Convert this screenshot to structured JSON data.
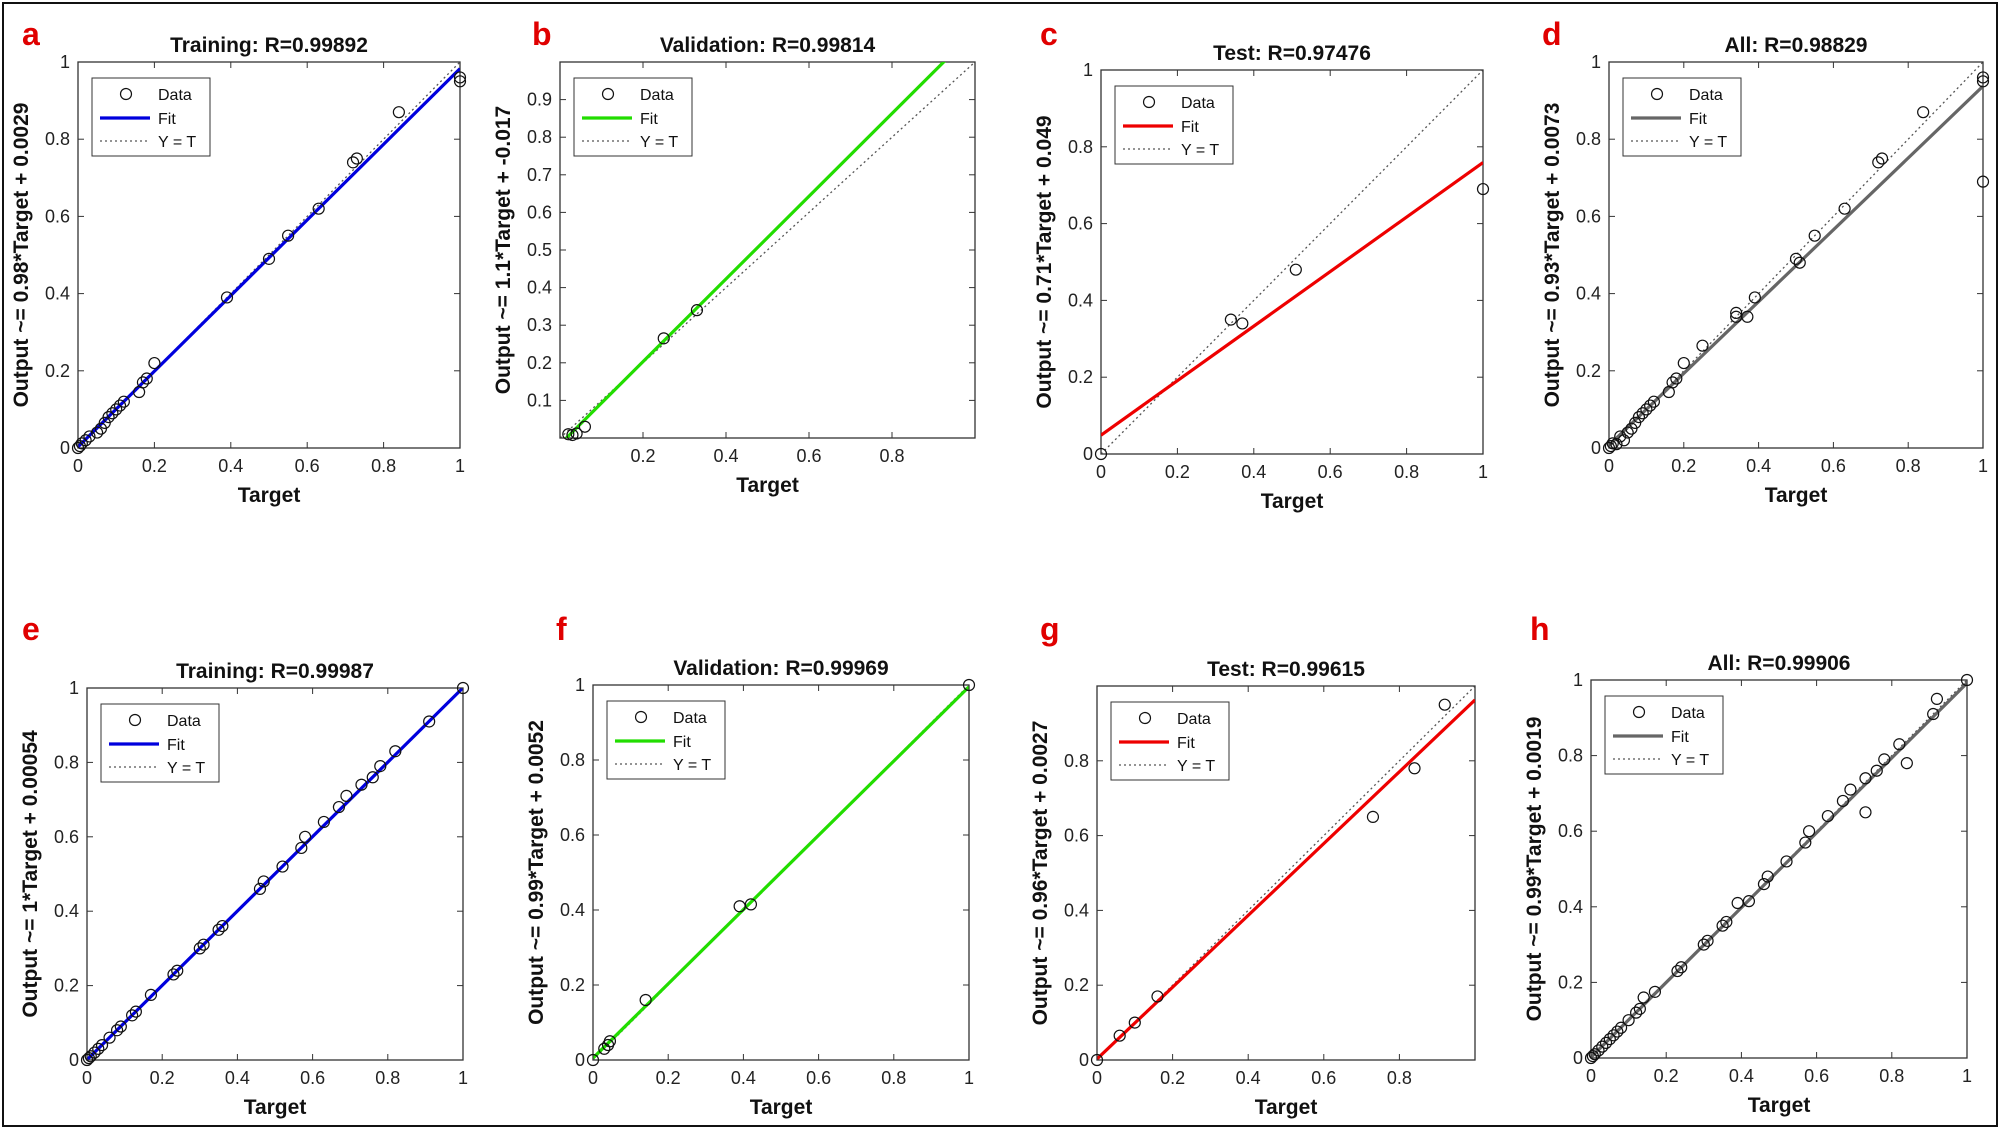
{
  "figure": {
    "letter_color": "#e00000"
  },
  "chart_data": [
    {
      "type": "scatter",
      "panel": "a",
      "title": "Training: R=0.99892",
      "xlabel": "Target",
      "ylabel": "Output ~= 0.98*Target + 0.0029",
      "xlim": [
        0,
        1
      ],
      "ylim": [
        0,
        1
      ],
      "xticks": [
        "0",
        "0.2",
        "0.4",
        "0.6",
        "0.8",
        "1"
      ],
      "yticks": [
        "0",
        "0.2",
        "0.4",
        "0.6",
        "0.8",
        "1"
      ],
      "fit": {
        "slope": 0.98,
        "intercept": 0.0029,
        "color": "#0000dd"
      },
      "legend": [
        "Data",
        "Fit",
        "Y = T"
      ],
      "points": [
        [
          0,
          0
        ],
        [
          0.005,
          0.005
        ],
        [
          0.01,
          0.012
        ],
        [
          0.02,
          0.02
        ],
        [
          0.03,
          0.03
        ],
        [
          0.05,
          0.04
        ],
        [
          0.06,
          0.05
        ],
        [
          0.07,
          0.065
        ],
        [
          0.08,
          0.08
        ],
        [
          0.09,
          0.09
        ],
        [
          0.1,
          0.1
        ],
        [
          0.11,
          0.11
        ],
        [
          0.12,
          0.12
        ],
        [
          0.16,
          0.145
        ],
        [
          0.17,
          0.17
        ],
        [
          0.18,
          0.18
        ],
        [
          0.2,
          0.22
        ],
        [
          0.39,
          0.39
        ],
        [
          0.5,
          0.49
        ],
        [
          0.55,
          0.55
        ],
        [
          0.63,
          0.62
        ],
        [
          0.72,
          0.74
        ],
        [
          0.73,
          0.75
        ],
        [
          0.84,
          0.87
        ],
        [
          1,
          0.95
        ],
        [
          1,
          0.96
        ]
      ]
    },
    {
      "type": "scatter",
      "panel": "b",
      "title": "Validation: R=0.99814",
      "xlabel": "Target",
      "ylabel": "Output ~= 1.1*Target + -0.017",
      "xlim": [
        0,
        1
      ],
      "ylim": [
        0,
        1
      ],
      "xticks": [
        "",
        "0.2",
        "0.4",
        "0.6",
        "0.8",
        ""
      ],
      "yticks": [
        "",
        "0.1",
        "0.2",
        "0.3",
        "0.4",
        "0.5",
        "0.6",
        "0.7",
        "0.8",
        "0.9",
        ""
      ],
      "fit": {
        "slope": 1.1,
        "intercept": -0.017,
        "color": "#22dd00"
      },
      "legend": [
        "Data",
        "Fit",
        "Y = T"
      ],
      "points": [
        [
          0.02,
          0.01
        ],
        [
          0.03,
          0.008
        ],
        [
          0.04,
          0.012
        ],
        [
          0.06,
          0.03
        ],
        [
          0.25,
          0.265
        ],
        [
          0.33,
          0.34
        ]
      ]
    },
    {
      "type": "scatter",
      "panel": "c",
      "title": "Test: R=0.97476",
      "xlabel": "Target",
      "ylabel": "Output ~= 0.71*Target + 0.049",
      "xlim": [
        0,
        1
      ],
      "ylim": [
        0,
        1
      ],
      "xticks": [
        "0",
        "0.2",
        "0.4",
        "0.6",
        "0.8",
        "1"
      ],
      "yticks": [
        "0",
        "0.2",
        "0.4",
        "0.6",
        "0.8",
        "1"
      ],
      "fit": {
        "slope": 0.71,
        "intercept": 0.049,
        "color": "#ee0000"
      },
      "legend": [
        "Data",
        "Fit",
        "Y = T"
      ],
      "points": [
        [
          0,
          0
        ],
        [
          0.34,
          0.35
        ],
        [
          0.37,
          0.34
        ],
        [
          0.51,
          0.48
        ],
        [
          1,
          0.69
        ]
      ]
    },
    {
      "type": "scatter",
      "panel": "d",
      "title": "All: R=0.98829",
      "xlabel": "Target",
      "ylabel": "Output ~= 0.93*Target + 0.0073",
      "xlim": [
        0,
        1
      ],
      "ylim": [
        0,
        1
      ],
      "xticks": [
        "0",
        "0.2",
        "0.4",
        "0.6",
        "0.8",
        "1"
      ],
      "yticks": [
        "0",
        "0.2",
        "0.4",
        "0.6",
        "0.8",
        "1"
      ],
      "fit": {
        "slope": 0.93,
        "intercept": 0.0073,
        "color": "#666666"
      },
      "legend": [
        "Data",
        "Fit",
        "Y = T"
      ],
      "points": [
        [
          0,
          0
        ],
        [
          0.005,
          0.005
        ],
        [
          0.01,
          0.012
        ],
        [
          0.02,
          0.01
        ],
        [
          0.03,
          0.03
        ],
        [
          0.04,
          0.02
        ],
        [
          0.05,
          0.04
        ],
        [
          0.06,
          0.05
        ],
        [
          0.07,
          0.065
        ],
        [
          0.08,
          0.08
        ],
        [
          0.09,
          0.09
        ],
        [
          0.1,
          0.1
        ],
        [
          0.11,
          0.11
        ],
        [
          0.12,
          0.12
        ],
        [
          0.16,
          0.145
        ],
        [
          0.17,
          0.17
        ],
        [
          0.18,
          0.18
        ],
        [
          0.2,
          0.22
        ],
        [
          0.25,
          0.265
        ],
        [
          0.34,
          0.35
        ],
        [
          0.34,
          0.34
        ],
        [
          0.37,
          0.34
        ],
        [
          0.39,
          0.39
        ],
        [
          0.5,
          0.49
        ],
        [
          0.51,
          0.48
        ],
        [
          0.55,
          0.55
        ],
        [
          0.63,
          0.62
        ],
        [
          0.72,
          0.74
        ],
        [
          0.73,
          0.75
        ],
        [
          0.84,
          0.87
        ],
        [
          1,
          0.95
        ],
        [
          1,
          0.96
        ],
        [
          1,
          0.69
        ]
      ]
    },
    {
      "type": "scatter",
      "panel": "e",
      "title": "Training: R=0.99987",
      "xlabel": "Target",
      "ylabel": "Output ~= 1*Target + 0.00054",
      "xlim": [
        0,
        1
      ],
      "ylim": [
        0,
        1
      ],
      "xticks": [
        "0",
        "0.2",
        "0.4",
        "0.6",
        "0.8",
        "1"
      ],
      "yticks": [
        "0",
        "0.2",
        "0.4",
        "0.6",
        "0.8",
        "1"
      ],
      "fit": {
        "slope": 1,
        "intercept": 0.00054,
        "color": "#0000dd"
      },
      "legend": [
        "Data",
        "Fit",
        "Y = T"
      ],
      "points": [
        [
          0,
          0
        ],
        [
          0.005,
          0.005
        ],
        [
          0.01,
          0.01
        ],
        [
          0.02,
          0.02
        ],
        [
          0.03,
          0.03
        ],
        [
          0.04,
          0.04
        ],
        [
          0.06,
          0.06
        ],
        [
          0.08,
          0.08
        ],
        [
          0.09,
          0.09
        ],
        [
          0.12,
          0.12
        ],
        [
          0.13,
          0.13
        ],
        [
          0.17,
          0.175
        ],
        [
          0.23,
          0.23
        ],
        [
          0.24,
          0.24
        ],
        [
          0.3,
          0.3
        ],
        [
          0.31,
          0.31
        ],
        [
          0.35,
          0.35
        ],
        [
          0.36,
          0.36
        ],
        [
          0.46,
          0.46
        ],
        [
          0.47,
          0.48
        ],
        [
          0.52,
          0.52
        ],
        [
          0.57,
          0.57
        ],
        [
          0.58,
          0.6
        ],
        [
          0.63,
          0.64
        ],
        [
          0.67,
          0.68
        ],
        [
          0.69,
          0.71
        ],
        [
          0.73,
          0.74
        ],
        [
          0.76,
          0.76
        ],
        [
          0.78,
          0.79
        ],
        [
          0.82,
          0.83
        ],
        [
          0.91,
          0.91
        ],
        [
          1,
          1
        ]
      ]
    },
    {
      "type": "scatter",
      "panel": "f",
      "title": "Validation: R=0.99969",
      "xlabel": "Target",
      "ylabel": "Output ~= 0.99*Target + 0.0052",
      "xlim": [
        0,
        1
      ],
      "ylim": [
        0,
        1
      ],
      "xticks": [
        "0",
        "0.2",
        "0.4",
        "0.6",
        "0.8",
        "1"
      ],
      "yticks": [
        "0",
        "0.2",
        "0.4",
        "0.6",
        "0.8",
        "1"
      ],
      "fit": {
        "slope": 0.99,
        "intercept": 0.0052,
        "color": "#22dd00"
      },
      "legend": [
        "Data",
        "Fit",
        "Y = T"
      ],
      "points": [
        [
          0,
          0
        ],
        [
          0.03,
          0.03
        ],
        [
          0.04,
          0.04
        ],
        [
          0.045,
          0.05
        ],
        [
          0.14,
          0.16
        ],
        [
          0.39,
          0.41
        ],
        [
          0.42,
          0.415
        ],
        [
          1,
          1
        ]
      ]
    },
    {
      "type": "scatter",
      "panel": "g",
      "title": "Test: R=0.99615",
      "xlabel": "Target",
      "ylabel": "Output ~= 0.96*Target + 0.0027",
      "xlim": [
        0,
        1
      ],
      "ylim": [
        0,
        1
      ],
      "xticks": [
        "0",
        "0.2",
        "0.4",
        "0.6",
        "0.8",
        ""
      ],
      "yticks": [
        "0",
        "0.2",
        "0.4",
        "0.6",
        "0.8",
        ""
      ],
      "fit": {
        "slope": 0.96,
        "intercept": 0.0027,
        "color": "#ee0000"
      },
      "legend": [
        "Data",
        "Fit",
        "Y = T"
      ],
      "points": [
        [
          0,
          0
        ],
        [
          0.06,
          0.065
        ],
        [
          0.1,
          0.1
        ],
        [
          0.16,
          0.17
        ],
        [
          0.73,
          0.65
        ],
        [
          0.84,
          0.78
        ],
        [
          0.92,
          0.95
        ]
      ]
    },
    {
      "type": "scatter",
      "panel": "h",
      "title": "All: R=0.99906",
      "xlabel": "Target",
      "ylabel": "Output ~= 0.99*Target + 0.0019",
      "xlim": [
        0,
        1
      ],
      "ylim": [
        0,
        1
      ],
      "xticks": [
        "0",
        "0.2",
        "0.4",
        "0.6",
        "0.8",
        "1"
      ],
      "yticks": [
        "0",
        "0.2",
        "0.4",
        "0.6",
        "0.8",
        "1"
      ],
      "fit": {
        "slope": 0.99,
        "intercept": 0.0019,
        "color": "#666666"
      },
      "legend": [
        "Data",
        "Fit",
        "Y = T"
      ],
      "points": [
        [
          0,
          0
        ],
        [
          0.005,
          0.005
        ],
        [
          0.01,
          0.01
        ],
        [
          0.02,
          0.02
        ],
        [
          0.03,
          0.03
        ],
        [
          0.04,
          0.04
        ],
        [
          0.05,
          0.05
        ],
        [
          0.06,
          0.06
        ],
        [
          0.07,
          0.07
        ],
        [
          0.08,
          0.08
        ],
        [
          0.1,
          0.1
        ],
        [
          0.12,
          0.12
        ],
        [
          0.13,
          0.13
        ],
        [
          0.14,
          0.16
        ],
        [
          0.17,
          0.175
        ],
        [
          0.23,
          0.23
        ],
        [
          0.24,
          0.24
        ],
        [
          0.3,
          0.3
        ],
        [
          0.31,
          0.31
        ],
        [
          0.35,
          0.35
        ],
        [
          0.36,
          0.36
        ],
        [
          0.39,
          0.41
        ],
        [
          0.42,
          0.415
        ],
        [
          0.46,
          0.46
        ],
        [
          0.47,
          0.48
        ],
        [
          0.52,
          0.52
        ],
        [
          0.57,
          0.57
        ],
        [
          0.58,
          0.6
        ],
        [
          0.63,
          0.64
        ],
        [
          0.67,
          0.68
        ],
        [
          0.69,
          0.71
        ],
        [
          0.73,
          0.65
        ],
        [
          0.73,
          0.74
        ],
        [
          0.76,
          0.76
        ],
        [
          0.78,
          0.79
        ],
        [
          0.82,
          0.83
        ],
        [
          0.84,
          0.78
        ],
        [
          0.91,
          0.91
        ],
        [
          0.92,
          0.95
        ],
        [
          1,
          1
        ]
      ]
    }
  ]
}
